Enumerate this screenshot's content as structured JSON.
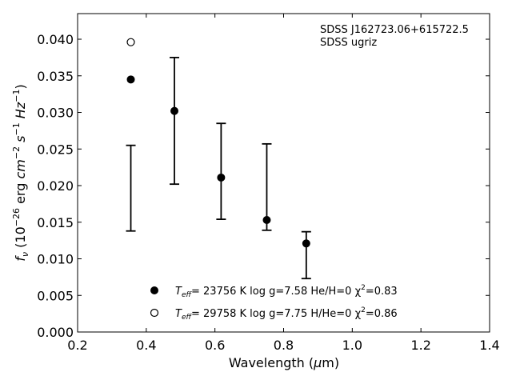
{
  "chart_data": {
    "type": "scatter",
    "xlabel": "Wavelength (μm)",
    "ylabel": "f_ν (10^-26 erg cm^-2 s^-1 Hz^-1)",
    "xlim": [
      0.2,
      1.4
    ],
    "ylim": [
      0.0,
      0.0435
    ],
    "x_ticks": [
      0.2,
      0.4,
      0.6,
      0.8,
      1.0,
      1.2,
      1.4
    ],
    "x_tick_labels": [
      "0.2",
      "0.4",
      "0.6",
      "0.8",
      "1.0",
      "1.2",
      "1.4"
    ],
    "y_ticks": [
      0.0,
      0.005,
      0.01,
      0.015,
      0.02,
      0.025,
      0.03,
      0.035,
      0.04
    ],
    "y_tick_labels": [
      "0.000",
      "0.005",
      "0.010",
      "0.015",
      "0.020",
      "0.025",
      "0.030",
      "0.035",
      "0.040"
    ],
    "grid": false,
    "annotations": [
      "SDSS J162723.06+615722.5",
      "SDSS ugriz"
    ],
    "observed": {
      "x": [
        0.355,
        0.482,
        0.618,
        0.751,
        0.866
      ],
      "y_low": [
        0.0138,
        0.0202,
        0.0154,
        0.0139,
        0.0073
      ],
      "y_high": [
        0.0255,
        0.0375,
        0.0285,
        0.0257,
        0.0137
      ]
    },
    "series": [
      {
        "marker": "filled-circle",
        "x": [
          0.355,
          0.482,
          0.618,
          0.751,
          0.866
        ],
        "y": [
          0.0345,
          0.0302,
          0.0211,
          0.0153,
          0.0121
        ]
      },
      {
        "marker": "open-circle",
        "x": [
          0.355
        ],
        "y": [
          0.0396
        ]
      }
    ],
    "legend": {
      "placement": "lower-center",
      "entries": [
        {
          "marker": "filled-circle",
          "teff_label": "T",
          "teff_sub": "eff",
          "rest": "= 23756 K  log g=7.58  He/H=0  χ",
          "sup": "2",
          "tail": "=0.83"
        },
        {
          "marker": "open-circle",
          "teff_label": "T",
          "teff_sub": "eff",
          "rest": "= 29758 K  log g=7.75  H/He=0  χ",
          "sup": "2",
          "tail": "=0.86"
        }
      ]
    }
  },
  "ylabel_parts": {
    "f": "f",
    "nu": "ν",
    "open": " (10",
    "exp1": "−26",
    "erg": " erg ",
    "cm": "cm",
    "exp2": "−2",
    "s": " s",
    "exp3": "−1",
    "hz": " Hz",
    "exp4": "−1",
    "close": ")"
  },
  "xlabel_parts": {
    "pre": "Wavelength (",
    "mu": "μ",
    "post": "m)"
  }
}
